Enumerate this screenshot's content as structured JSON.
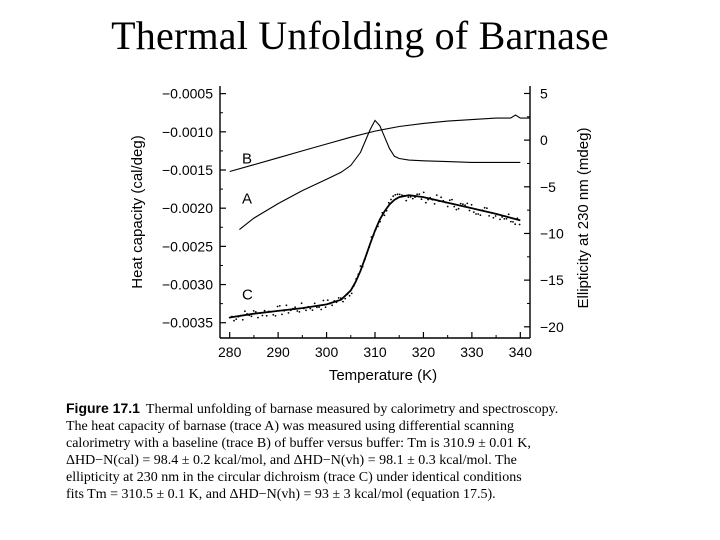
{
  "slide": {
    "title": "Thermal Unfolding of Barnase"
  },
  "chart_data": {
    "type": "line",
    "xlabel": "Temperature (K)",
    "ylabel_left": "Heat capacity (cal/deg)",
    "ylabel_right": "Ellipticity at 230 nm (mdeg)",
    "xlim": [
      278,
      342
    ],
    "ylim_left": [
      -0.0037,
      -0.0004
    ],
    "ylim_right": [
      -21.2,
      5.8
    ],
    "x_ticks": [
      280,
      290,
      300,
      310,
      320,
      330,
      340
    ],
    "y_ticks_left": [
      "-0.0005",
      "-0.0010",
      "-0.0015",
      "-0.0020",
      "-0.0025",
      "-0.0030",
      "-0.0035"
    ],
    "y_ticks_left_values": [
      -0.0005,
      -0.001,
      -0.0015,
      -0.002,
      -0.0025,
      -0.003,
      -0.0035
    ],
    "y_ticks_right": [
      "5",
      "0",
      "-5",
      "-10",
      "-15",
      "-20"
    ],
    "y_ticks_right_values": [
      5,
      0,
      -5,
      -10,
      -15,
      -20
    ],
    "grid": false,
    "series": [
      {
        "name": "B",
        "axis": "left",
        "style": "line",
        "x": [
          280,
          285,
          290,
          295,
          300,
          305,
          310,
          315,
          320,
          325,
          330,
          335,
          338,
          339,
          340,
          342
        ],
        "y": [
          -0.00152,
          -0.00143,
          -0.00134,
          -0.00125,
          -0.00116,
          -0.00107,
          -0.00099,
          -0.00093,
          -0.00089,
          -0.00086,
          -0.00084,
          -0.00082,
          -0.00082,
          -0.00078,
          -0.00082,
          -0.00082
        ]
      },
      {
        "name": "A",
        "axis": "left",
        "style": "line",
        "x": [
          282,
          285,
          290,
          295,
          300,
          303,
          305,
          307,
          308,
          309,
          310,
          311,
          312,
          313,
          314,
          315,
          317,
          320,
          325,
          330,
          335,
          340
        ],
        "y": [
          -0.00228,
          -0.00213,
          -0.00194,
          -0.00177,
          -0.00162,
          -0.00153,
          -0.00144,
          -0.00127,
          -0.00112,
          -0.00097,
          -0.00085,
          -0.00092,
          -0.00107,
          -0.00122,
          -0.00132,
          -0.00135,
          -0.00137,
          -0.00138,
          -0.00139,
          -0.0014,
          -0.0014,
          -0.0014
        ]
      },
      {
        "name": "C",
        "axis": "right",
        "style": "line+points",
        "x": [
          280,
          285,
          290,
          295,
          300,
          303,
          305,
          306,
          307,
          308,
          309,
          310,
          311,
          312,
          313,
          314,
          315,
          317,
          320,
          325,
          330,
          335,
          340
        ],
        "y": [
          -19.0,
          -18.6,
          -18.3,
          -18.0,
          -17.6,
          -17.1,
          -16.1,
          -15.2,
          -14.0,
          -12.6,
          -11.1,
          -9.7,
          -8.5,
          -7.6,
          -6.9,
          -6.4,
          -6.1,
          -5.9,
          -6.1,
          -6.7,
          -7.3,
          -7.9,
          -8.6
        ]
      }
    ]
  },
  "caption": {
    "figure_label": "Figure 17.1",
    "lines": [
      "Thermal unfolding of barnase measured by calorimetry and spectroscopy.",
      "The heat capacity of barnase (trace A) was measured using differential scanning",
      "calorimetry with a baseline (trace B) of buffer versus buffer: Tm is 310.9 ± 0.01 K,",
      "ΔHD−N(cal) = 98.4 ± 0.2 kcal/mol, and ΔHD−N(vh) = 98.1 ± 0.3 kcal/mol. The",
      "ellipticity at 230 nm in the circular dichroism (trace C) under identical conditions",
      "fits Tm = 310.5 ± 0.1 K, and ΔHD−N(vh) = 93 ± 3 kcal/mol (equation 17.5)."
    ]
  }
}
